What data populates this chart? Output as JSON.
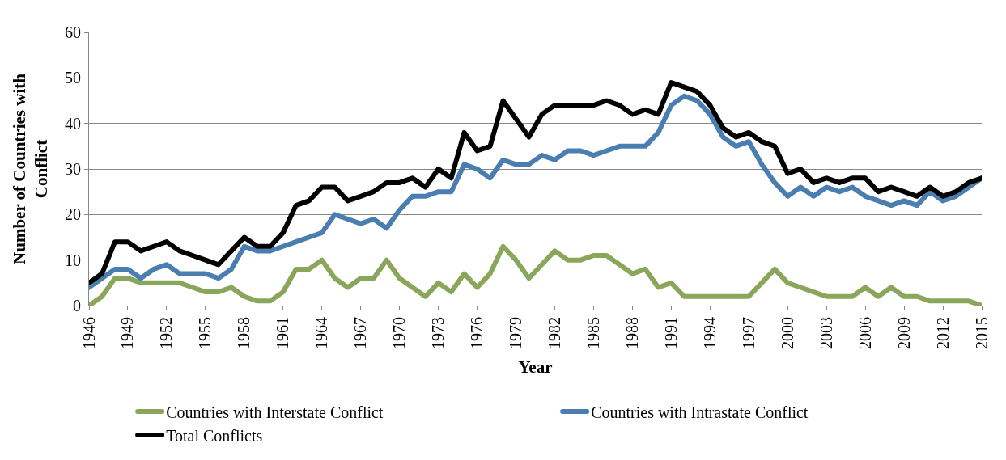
{
  "chart_data": {
    "type": "line",
    "xlabel": "Year",
    "ylabel": "Number of Countries with Conflict",
    "x": [
      1946,
      1947,
      1948,
      1949,
      1950,
      1951,
      1952,
      1953,
      1954,
      1955,
      1956,
      1957,
      1958,
      1959,
      1960,
      1961,
      1962,
      1963,
      1964,
      1965,
      1966,
      1967,
      1968,
      1969,
      1970,
      1971,
      1972,
      1973,
      1974,
      1975,
      1976,
      1977,
      1978,
      1979,
      1980,
      1981,
      1982,
      1983,
      1984,
      1985,
      1986,
      1987,
      1988,
      1989,
      1990,
      1991,
      1992,
      1993,
      1994,
      1995,
      1996,
      1997,
      1998,
      1999,
      2000,
      2001,
      2002,
      2003,
      2004,
      2005,
      2006,
      2007,
      2008,
      2009,
      2010,
      2011,
      2012,
      2013,
      2014,
      2015
    ],
    "series": [
      {
        "name": "Countries with Interstate Conflict",
        "color": "#8aa65a",
        "values": [
          0,
          2,
          6,
          6,
          5,
          5,
          5,
          5,
          4,
          3,
          3,
          4,
          2,
          1,
          1,
          3,
          8,
          8,
          10,
          6,
          4,
          6,
          6,
          10,
          6,
          4,
          2,
          5,
          3,
          7,
          4,
          7,
          13,
          10,
          6,
          9,
          12,
          10,
          10,
          11,
          11,
          9,
          7,
          8,
          4,
          5,
          2,
          2,
          2,
          2,
          2,
          2,
          5,
          8,
          5,
          4,
          3,
          2,
          2,
          2,
          4,
          2,
          4,
          2,
          2,
          1,
          1,
          1,
          1,
          0
        ]
      },
      {
        "name": "Countries with Intrastate Conflict",
        "color": "#4a7eb0",
        "values": [
          4,
          6,
          8,
          8,
          6,
          8,
          9,
          7,
          7,
          7,
          6,
          8,
          13,
          12,
          12,
          13,
          14,
          15,
          16,
          20,
          19,
          18,
          19,
          17,
          21,
          24,
          24,
          25,
          25,
          31,
          30,
          28,
          32,
          31,
          31,
          33,
          32,
          34,
          34,
          33,
          34,
          35,
          35,
          35,
          38,
          44,
          46,
          45,
          42,
          37,
          35,
          36,
          31,
          27,
          24,
          26,
          24,
          26,
          25,
          26,
          24,
          23,
          22,
          23,
          22,
          25,
          23,
          24,
          26,
          28
        ]
      },
      {
        "name": "Total Conflicts",
        "color": "#000000",
        "values": [
          5,
          7,
          14,
          14,
          12,
          13,
          14,
          12,
          11,
          10,
          9,
          12,
          15,
          13,
          13,
          16,
          22,
          23,
          26,
          26,
          23,
          24,
          25,
          27,
          27,
          28,
          26,
          30,
          28,
          38,
          34,
          35,
          45,
          41,
          37,
          42,
          44,
          44,
          44,
          44,
          45,
          44,
          42,
          43,
          42,
          49,
          48,
          47,
          44,
          39,
          37,
          38,
          36,
          35,
          29,
          30,
          27,
          28,
          27,
          28,
          28,
          25,
          26,
          25,
          24,
          26,
          24,
          25,
          27,
          28
        ]
      }
    ],
    "xlim": [
      1946,
      2015
    ],
    "xticks": [
      1946,
      1949,
      1952,
      1955,
      1958,
      1961,
      1964,
      1967,
      1970,
      1973,
      1976,
      1979,
      1982,
      1985,
      1988,
      1991,
      1994,
      1997,
      2000,
      2003,
      2006,
      2009,
      2012,
      2015
    ],
    "ylim": [
      0,
      60
    ],
    "yticks": [
      0,
      10,
      20,
      30,
      40,
      50,
      60
    ],
    "grid": "y",
    "legend": "bottom",
    "marker": "none",
    "line_style": "solid"
  }
}
